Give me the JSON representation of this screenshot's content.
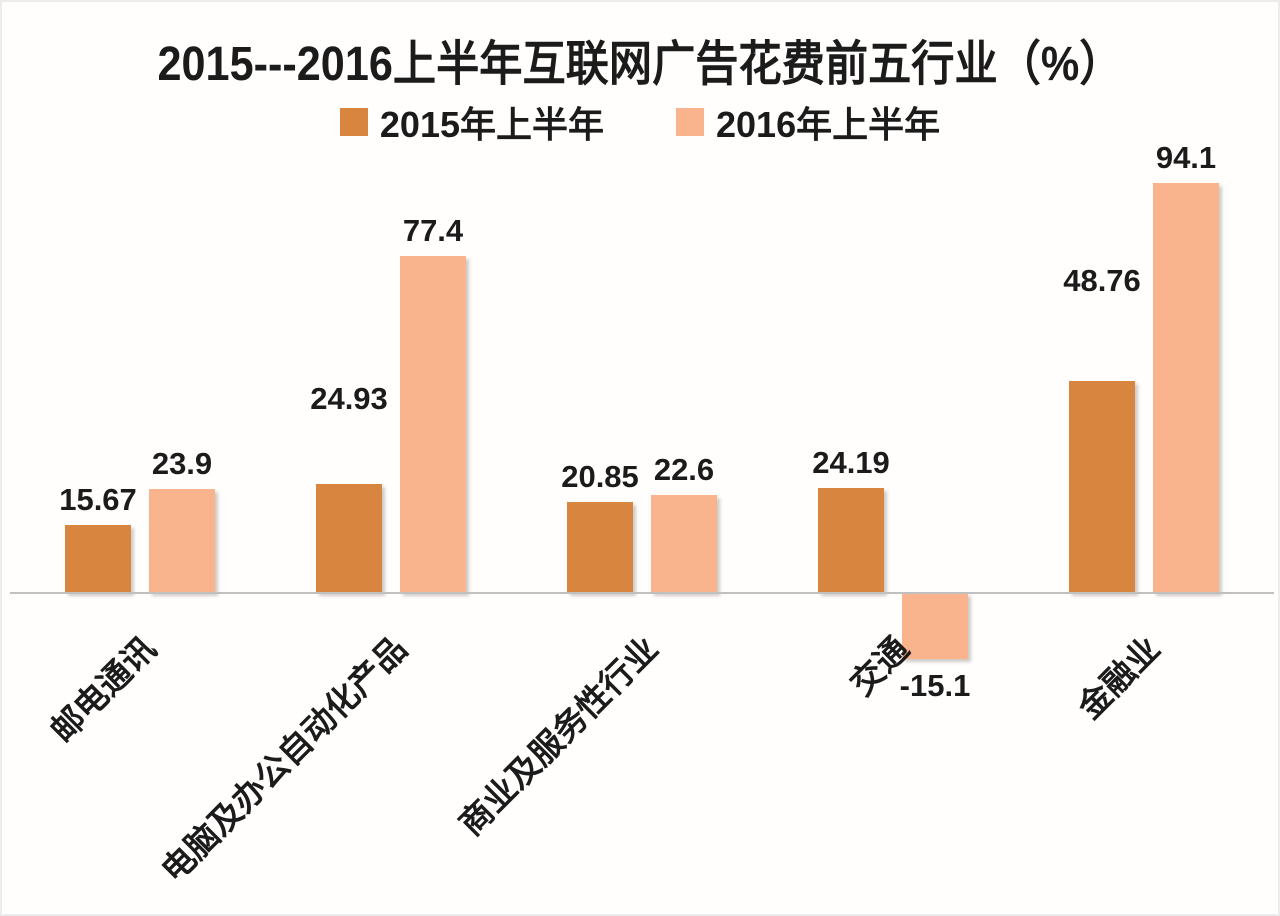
{
  "chart_data": {
    "type": "bar",
    "title": "2015---2016上半年互联网广告花费前五行业（%）",
    "categories": [
      "邮电通讯",
      "电脑及办公自动化产品",
      "商业及服务性行业",
      "交通",
      "金融业"
    ],
    "series": [
      {
        "name": "2015年上半年",
        "color": "#D8863F",
        "values": [
          15.67,
          24.93,
          20.85,
          24.19,
          48.76
        ],
        "label_dy": [
          0,
          -60,
          0,
          0,
          -75
        ]
      },
      {
        "name": "2016年上半年",
        "color": "#F9B38D",
        "values": [
          23.9,
          77.4,
          22.6,
          -15.1,
          94.1
        ],
        "label_dy": [
          0,
          0,
          0,
          0,
          0
        ]
      }
    ],
    "xlabel": "",
    "ylabel": "",
    "ylim": [
      -20,
      100
    ],
    "grid": false,
    "value_labels": true,
    "legend_position": "top",
    "axis_color": "#C0C0C0",
    "text_color": "#1b1b1b",
    "background_color": "#FFFFFF"
  }
}
